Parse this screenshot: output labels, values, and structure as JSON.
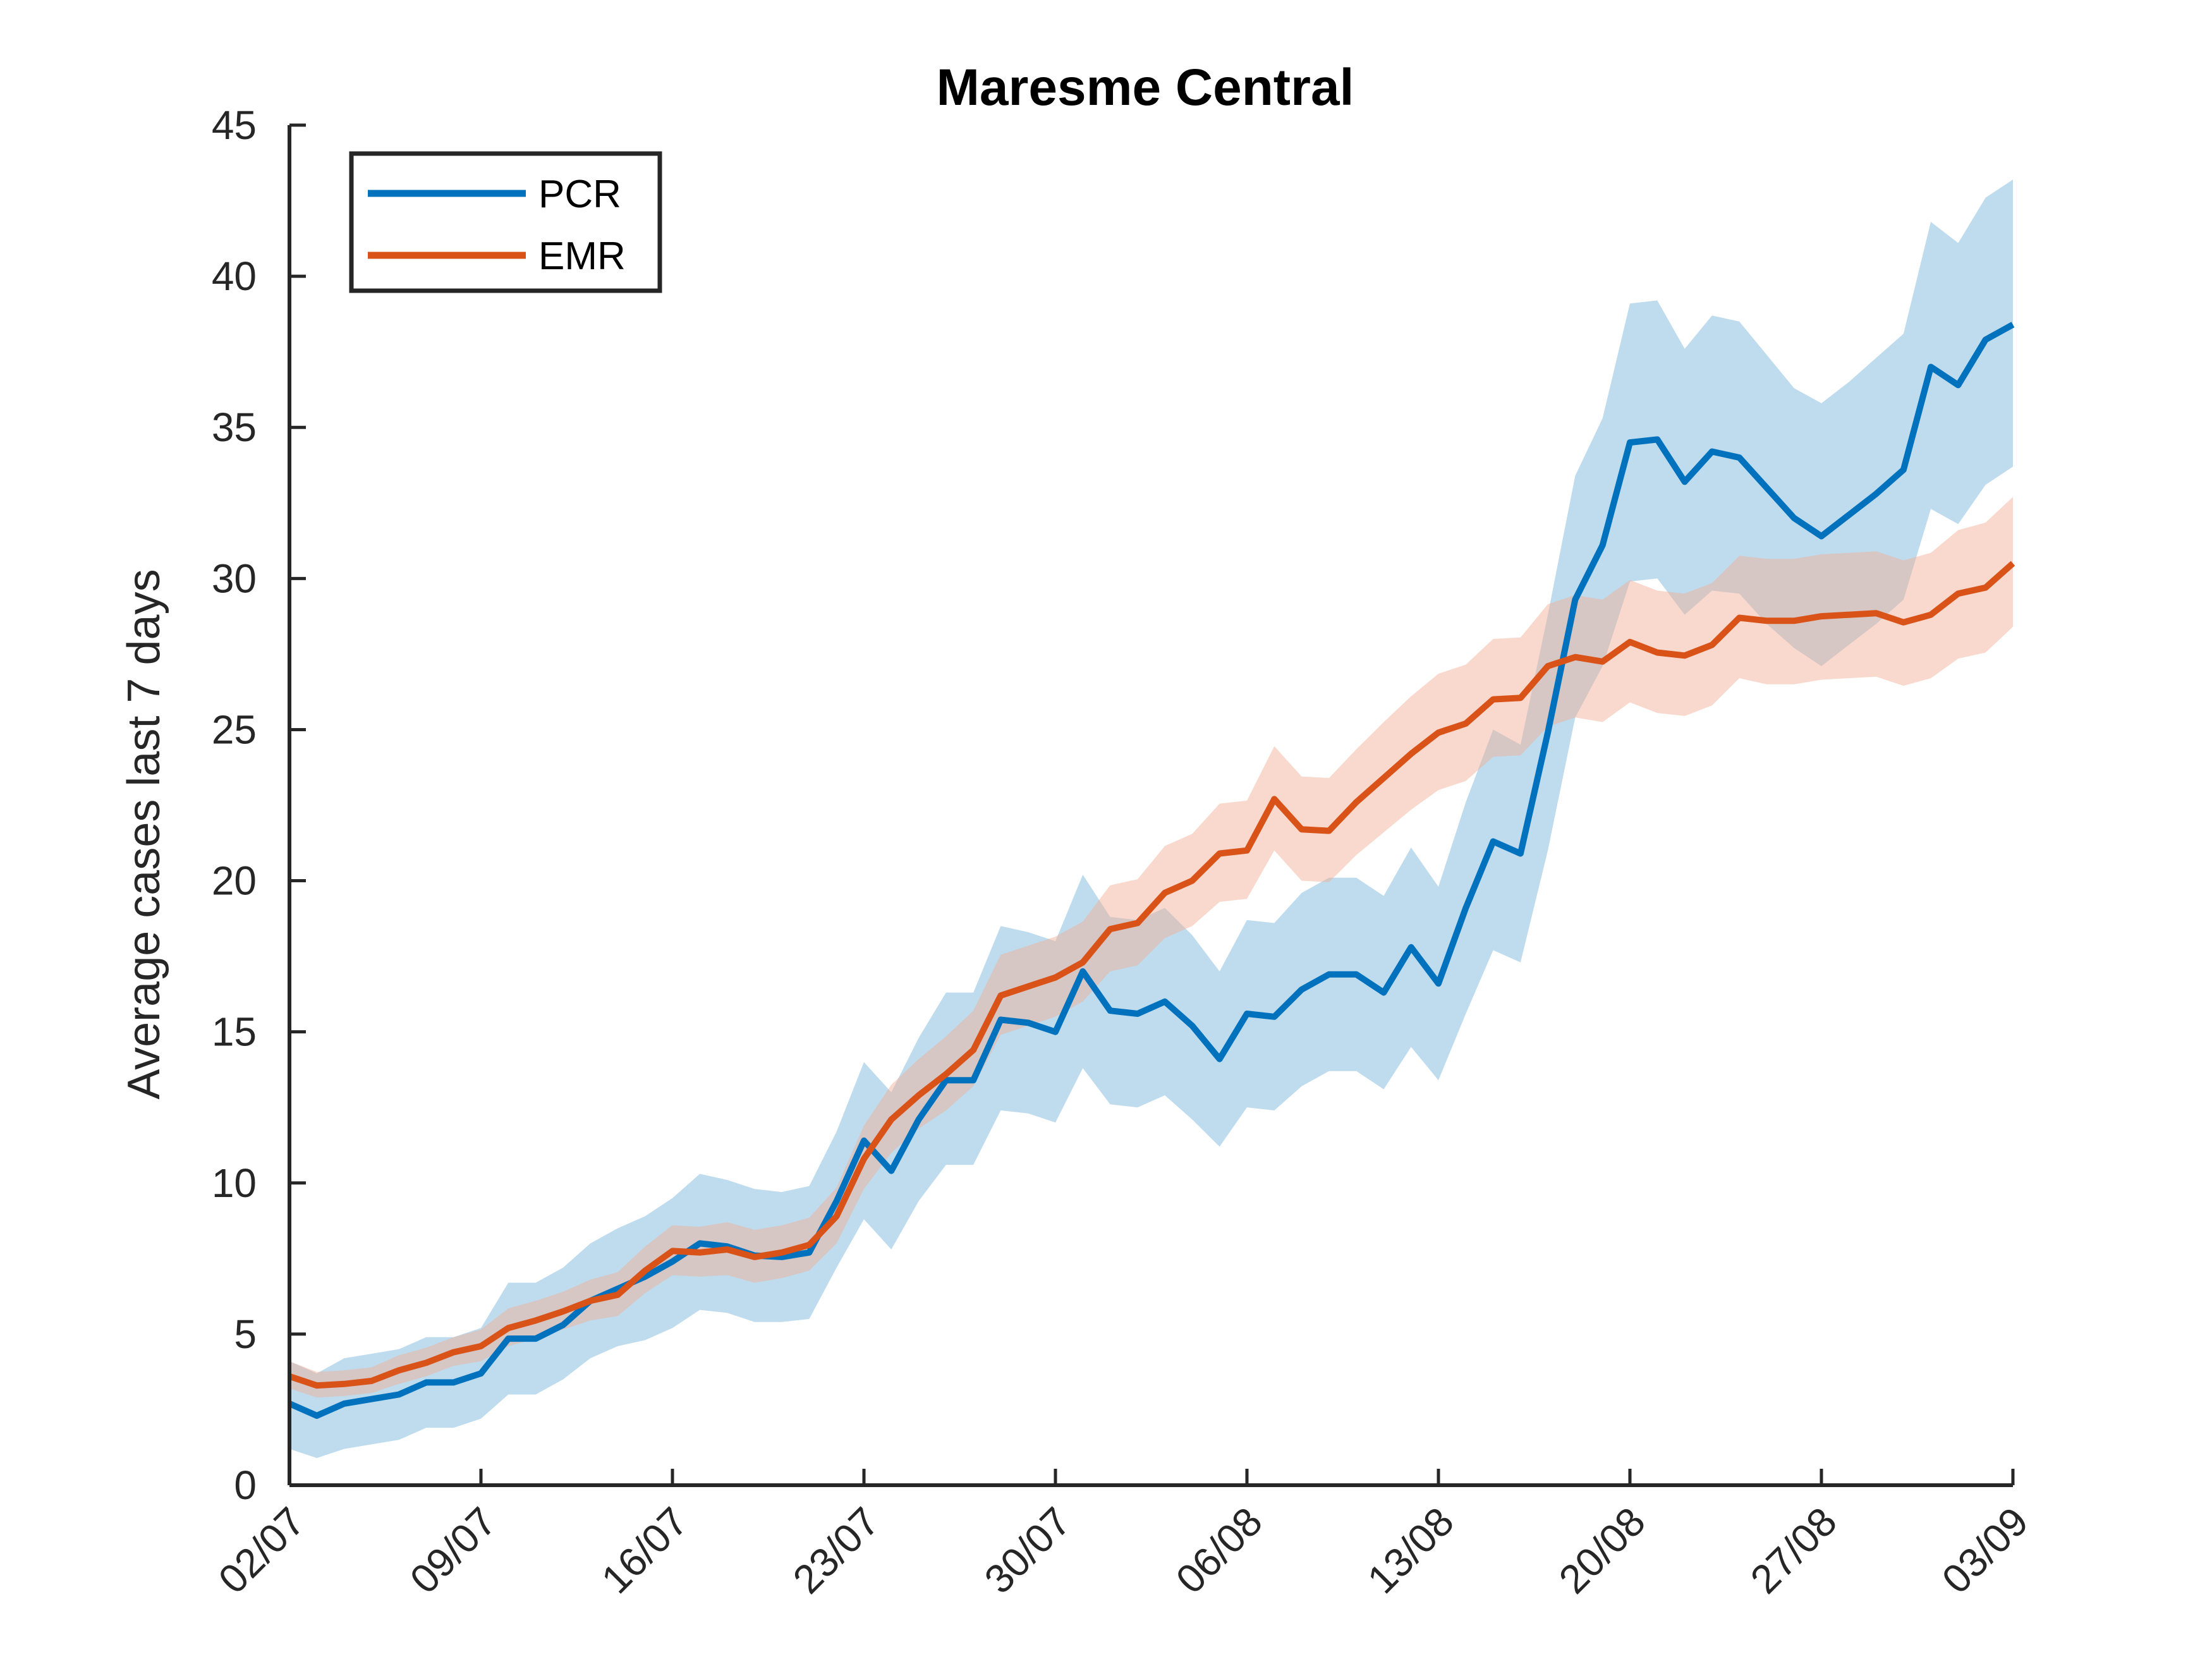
{
  "chart_data": {
    "type": "line",
    "title": "Maresme Central",
    "xlabel": "",
    "ylabel": "Average cases last 7 days",
    "ylim": [
      0,
      45
    ],
    "yticks": [
      0,
      5,
      10,
      15,
      20,
      25,
      30,
      35,
      40,
      45
    ],
    "xlim": [
      "2020-07-02",
      "2020-09-03"
    ],
    "xtick_dates": [
      "2020-07-02",
      "2020-07-09",
      "2020-07-16",
      "2020-07-23",
      "2020-07-30",
      "2020-08-06",
      "2020-08-13",
      "2020-08-20",
      "2020-08-27",
      "2020-09-03"
    ],
    "xtick_labels": [
      "02/07",
      "09/07",
      "16/07",
      "23/07",
      "30/07",
      "06/08",
      "13/08",
      "20/08",
      "27/08",
      "03/09"
    ],
    "grid": false,
    "legend_position": "top-left",
    "x": [
      "2020-07-02",
      "2020-07-03",
      "2020-07-04",
      "2020-07-05",
      "2020-07-06",
      "2020-07-07",
      "2020-07-08",
      "2020-07-09",
      "2020-07-10",
      "2020-07-11",
      "2020-07-12",
      "2020-07-13",
      "2020-07-14",
      "2020-07-15",
      "2020-07-16",
      "2020-07-17",
      "2020-07-18",
      "2020-07-19",
      "2020-07-20",
      "2020-07-21",
      "2020-07-22",
      "2020-07-23",
      "2020-07-24",
      "2020-07-25",
      "2020-07-26",
      "2020-07-27",
      "2020-07-28",
      "2020-07-29",
      "2020-07-30",
      "2020-07-31",
      "2020-08-01",
      "2020-08-02",
      "2020-08-03",
      "2020-08-04",
      "2020-08-05",
      "2020-08-06",
      "2020-08-07",
      "2020-08-08",
      "2020-08-09",
      "2020-08-10",
      "2020-08-11",
      "2020-08-12",
      "2020-08-13",
      "2020-08-14",
      "2020-08-15",
      "2020-08-16",
      "2020-08-17",
      "2020-08-18",
      "2020-08-19",
      "2020-08-20",
      "2020-08-21",
      "2020-08-22",
      "2020-08-23",
      "2020-08-24",
      "2020-08-25",
      "2020-08-26",
      "2020-08-27",
      "2020-08-28",
      "2020-08-29",
      "2020-08-30",
      "2020-08-31",
      "2020-09-01",
      "2020-09-02",
      "2020-09-03"
    ],
    "series": [
      {
        "name": "PCR",
        "color": "#0072BD",
        "band_color": "#0072BD",
        "values": [
          2.7,
          2.3,
          2.7,
          2.85,
          3.0,
          3.4,
          3.4,
          3.7,
          4.85,
          4.85,
          5.3,
          6.1,
          6.5,
          6.9,
          7.4,
          8.0,
          7.9,
          7.6,
          7.55,
          7.7,
          9.4,
          11.4,
          10.4,
          12.1,
          13.4,
          13.4,
          15.4,
          15.3,
          15.0,
          17.0,
          15.7,
          15.6,
          16.0,
          15.2,
          14.1,
          15.6,
          15.5,
          16.4,
          16.9,
          16.9,
          16.3,
          17.8,
          16.6,
          19.1,
          21.3,
          20.9,
          24.9,
          29.3,
          31.1,
          34.5,
          34.6,
          33.2,
          34.2,
          34.0,
          33.0,
          32.0,
          31.4,
          32.1,
          32.8,
          33.6,
          37.0,
          36.4,
          37.9,
          38.4
        ],
        "lower": [
          1.2,
          0.9,
          1.2,
          1.35,
          1.5,
          1.9,
          1.9,
          2.2,
          3.0,
          3.0,
          3.5,
          4.2,
          4.6,
          4.8,
          5.2,
          5.8,
          5.7,
          5.4,
          5.4,
          5.5,
          7.2,
          8.8,
          7.8,
          9.4,
          10.6,
          10.6,
          12.4,
          12.3,
          12.0,
          13.8,
          12.6,
          12.5,
          12.9,
          12.1,
          11.2,
          12.5,
          12.4,
          13.2,
          13.7,
          13.7,
          13.1,
          14.5,
          13.4,
          15.6,
          17.7,
          17.3,
          21.0,
          25.4,
          27.1,
          29.9,
          30.0,
          28.8,
          29.6,
          29.5,
          28.5,
          27.7,
          27.1,
          27.8,
          28.5,
          29.3,
          32.3,
          31.8,
          33.1,
          33.7
        ],
        "upper": [
          4.1,
          3.7,
          4.2,
          4.35,
          4.5,
          4.9,
          4.9,
          5.2,
          6.7,
          6.7,
          7.2,
          8.0,
          8.5,
          8.9,
          9.5,
          10.3,
          10.1,
          9.8,
          9.7,
          9.9,
          11.7,
          14.0,
          13.0,
          14.8,
          16.3,
          16.3,
          18.5,
          18.3,
          18.0,
          20.2,
          18.8,
          18.7,
          19.1,
          18.2,
          17.0,
          18.7,
          18.6,
          19.6,
          20.1,
          20.1,
          19.5,
          21.1,
          19.8,
          22.6,
          25.0,
          24.5,
          28.8,
          33.4,
          35.3,
          39.1,
          39.2,
          37.6,
          38.7,
          38.5,
          37.4,
          36.3,
          35.8,
          36.5,
          37.3,
          38.1,
          41.8,
          41.1,
          42.6,
          43.2
        ]
      },
      {
        "name": "EMR",
        "color": "#D95319",
        "band_color": "#F2AB90",
        "values": [
          3.6,
          3.3,
          3.35,
          3.45,
          3.8,
          4.05,
          4.4,
          4.6,
          5.2,
          5.45,
          5.75,
          6.1,
          6.3,
          7.1,
          7.75,
          7.7,
          7.8,
          7.55,
          7.7,
          7.95,
          8.9,
          10.8,
          12.1,
          12.9,
          13.6,
          14.4,
          16.2,
          16.5,
          16.8,
          17.3,
          18.4,
          18.6,
          19.6,
          20.0,
          20.9,
          21.0,
          22.7,
          21.7,
          21.65,
          22.6,
          23.4,
          24.2,
          24.9,
          25.2,
          26.0,
          26.05,
          27.1,
          27.4,
          27.25,
          27.9,
          27.55,
          27.45,
          27.8,
          28.7,
          28.6,
          28.6,
          28.75,
          28.8,
          28.85,
          28.55,
          28.8,
          29.5,
          29.7,
          30.5
        ],
        "lower": [
          3.2,
          2.9,
          2.95,
          3.05,
          3.35,
          3.6,
          3.95,
          4.1,
          4.6,
          4.85,
          5.15,
          5.45,
          5.6,
          6.35,
          6.95,
          6.9,
          6.95,
          6.7,
          6.85,
          7.1,
          8.0,
          9.8,
          11.0,
          11.8,
          12.4,
          13.2,
          14.9,
          15.2,
          15.5,
          16.0,
          17.0,
          17.2,
          18.1,
          18.5,
          19.3,
          19.4,
          21.0,
          20.0,
          19.95,
          20.85,
          21.6,
          22.35,
          23.0,
          23.3,
          24.1,
          24.15,
          25.1,
          25.4,
          25.25,
          25.9,
          25.55,
          25.45,
          25.8,
          26.7,
          26.5,
          26.5,
          26.65,
          26.7,
          26.75,
          26.45,
          26.7,
          27.35,
          27.55,
          28.4
        ],
        "upper": [
          4.1,
          3.75,
          3.8,
          3.9,
          4.3,
          4.55,
          4.9,
          5.15,
          5.85,
          6.1,
          6.4,
          6.8,
          7.05,
          7.9,
          8.6,
          8.55,
          8.7,
          8.45,
          8.6,
          8.85,
          9.85,
          11.9,
          13.25,
          14.1,
          14.85,
          15.7,
          17.55,
          17.85,
          18.15,
          18.65,
          19.85,
          20.05,
          21.15,
          21.55,
          22.55,
          22.65,
          24.45,
          23.45,
          23.4,
          24.35,
          25.25,
          26.1,
          26.85,
          27.15,
          28.0,
          28.05,
          29.15,
          29.45,
          29.3,
          29.95,
          29.6,
          29.5,
          29.85,
          30.75,
          30.65,
          30.65,
          30.8,
          30.85,
          30.9,
          30.6,
          30.85,
          31.6,
          31.85,
          32.7
        ]
      }
    ]
  }
}
